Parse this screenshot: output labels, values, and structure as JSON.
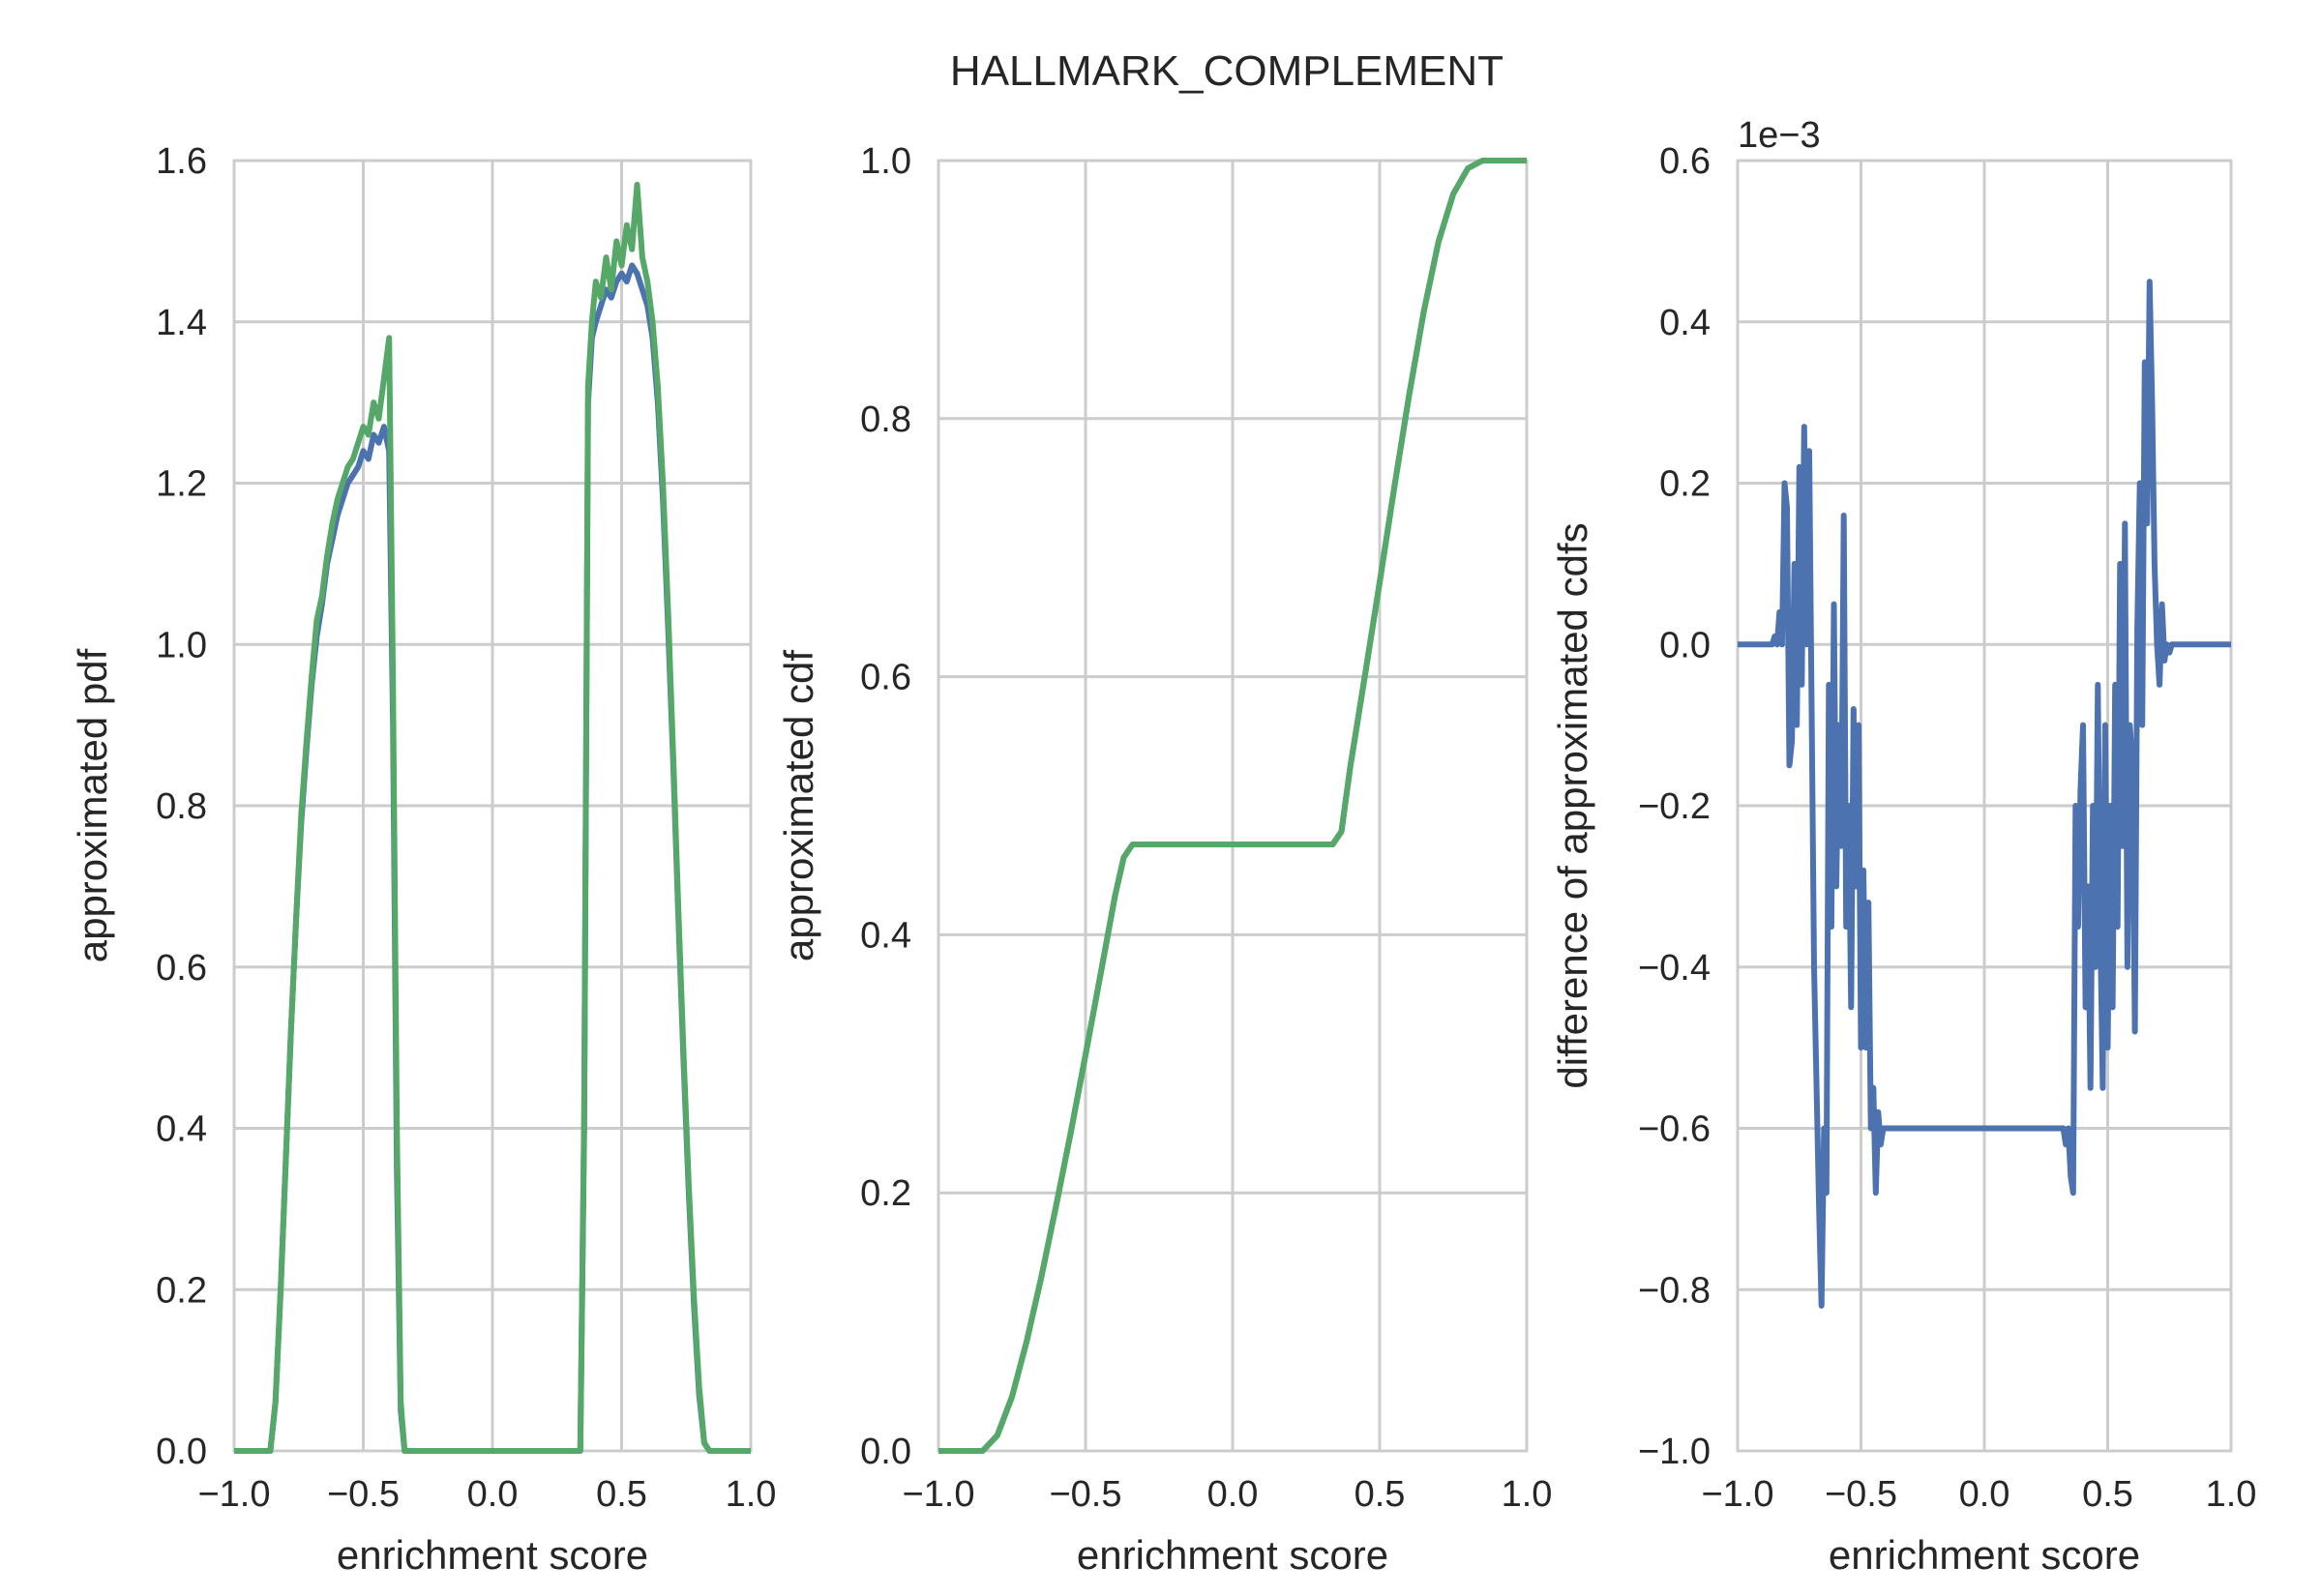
{
  "figure": {
    "title": "HALLMARK_COMPLEMENT"
  },
  "colors": {
    "series_blue": "#4C72B0",
    "series_green": "#55A868",
    "grid": "#cccccc",
    "text": "#262626"
  },
  "chart_data": [
    {
      "type": "line",
      "xlabel": "enrichment score",
      "ylabel": "approximated pdf",
      "xlim": [
        -1.0,
        1.0
      ],
      "ylim": [
        0.0,
        1.6
      ],
      "xticks": [
        "−1.0",
        "−0.5",
        "0.0",
        "0.5",
        "1.0"
      ],
      "yticks": [
        "0.0",
        "0.2",
        "0.4",
        "0.6",
        "0.8",
        "1.0",
        "1.2",
        "1.4",
        "1.6"
      ],
      "grid": true,
      "series": [
        {
          "color": "#4C72B0",
          "x": [
            -1.0,
            -0.86,
            -0.84,
            -0.82,
            -0.8,
            -0.78,
            -0.76,
            -0.74,
            -0.72,
            -0.7,
            -0.68,
            -0.66,
            -0.64,
            -0.62,
            -0.6,
            -0.58,
            -0.56,
            -0.54,
            -0.52,
            -0.5,
            -0.48,
            -0.46,
            -0.44,
            -0.42,
            -0.4,
            -0.385,
            -0.37,
            -0.355,
            -0.34,
            0.34,
            0.355,
            0.37,
            0.385,
            0.4,
            0.42,
            0.44,
            0.46,
            0.48,
            0.5,
            0.52,
            0.54,
            0.56,
            0.58,
            0.6,
            0.62,
            0.64,
            0.66,
            0.68,
            0.7,
            0.72,
            0.74,
            0.76,
            0.78,
            0.8,
            0.82,
            0.84,
            0.86,
            1.0
          ],
          "y": [
            0.0,
            0.0,
            0.06,
            0.2,
            0.36,
            0.52,
            0.66,
            0.78,
            0.87,
            0.95,
            1.01,
            1.05,
            1.1,
            1.13,
            1.16,
            1.18,
            1.2,
            1.21,
            1.22,
            1.24,
            1.23,
            1.26,
            1.25,
            1.27,
            1.24,
            0.9,
            0.35,
            0.05,
            0.0,
            0.0,
            0.4,
            1.3,
            1.38,
            1.4,
            1.42,
            1.44,
            1.43,
            1.45,
            1.46,
            1.45,
            1.47,
            1.46,
            1.44,
            1.42,
            1.38,
            1.3,
            1.18,
            1.02,
            0.85,
            0.66,
            0.48,
            0.32,
            0.18,
            0.07,
            0.01,
            0.0,
            0.0,
            0.0
          ]
        },
        {
          "color": "#55A868",
          "x": [
            -1.0,
            -0.86,
            -0.84,
            -0.82,
            -0.8,
            -0.78,
            -0.76,
            -0.74,
            -0.72,
            -0.7,
            -0.68,
            -0.66,
            -0.64,
            -0.62,
            -0.6,
            -0.58,
            -0.56,
            -0.54,
            -0.52,
            -0.5,
            -0.48,
            -0.46,
            -0.44,
            -0.42,
            -0.4,
            -0.385,
            -0.37,
            -0.355,
            -0.34,
            0.34,
            0.355,
            0.37,
            0.385,
            0.4,
            0.42,
            0.44,
            0.46,
            0.48,
            0.5,
            0.52,
            0.54,
            0.56,
            0.58,
            0.6,
            0.62,
            0.64,
            0.66,
            0.68,
            0.7,
            0.72,
            0.74,
            0.76,
            0.78,
            0.8,
            0.82,
            0.84,
            0.86,
            1.0
          ],
          "y": [
            0.0,
            0.0,
            0.06,
            0.2,
            0.36,
            0.52,
            0.66,
            0.79,
            0.88,
            0.96,
            1.03,
            1.06,
            1.11,
            1.15,
            1.18,
            1.2,
            1.22,
            1.23,
            1.25,
            1.27,
            1.26,
            1.3,
            1.28,
            1.33,
            1.38,
            0.95,
            0.4,
            0.06,
            0.0,
            0.0,
            0.42,
            1.32,
            1.4,
            1.45,
            1.43,
            1.48,
            1.44,
            1.5,
            1.47,
            1.52,
            1.49,
            1.57,
            1.48,
            1.45,
            1.4,
            1.32,
            1.2,
            1.04,
            0.86,
            0.67,
            0.49,
            0.33,
            0.19,
            0.08,
            0.01,
            0.0,
            0.0,
            0.0
          ]
        }
      ]
    },
    {
      "type": "line",
      "xlabel": "enrichment score",
      "ylabel": "approximated cdf",
      "xlim": [
        -1.0,
        1.0
      ],
      "ylim": [
        0.0,
        1.0
      ],
      "xticks": [
        "−1.0",
        "−0.5",
        "0.0",
        "0.5",
        "1.0"
      ],
      "yticks": [
        "0.0",
        "0.2",
        "0.4",
        "0.6",
        "0.8",
        "1.0"
      ],
      "grid": true,
      "series": [
        {
          "color": "#4C72B0",
          "x": [
            -1.0,
            -0.85,
            -0.8,
            -0.75,
            -0.7,
            -0.65,
            -0.6,
            -0.55,
            -0.5,
            -0.45,
            -0.4,
            -0.37,
            -0.34,
            0.34,
            0.37,
            0.4,
            0.45,
            0.5,
            0.55,
            0.6,
            0.65,
            0.7,
            0.75,
            0.8,
            0.85,
            1.0
          ],
          "y": [
            0.0,
            0.0,
            0.012,
            0.042,
            0.085,
            0.135,
            0.19,
            0.247,
            0.307,
            0.368,
            0.43,
            0.46,
            0.47,
            0.47,
            0.48,
            0.53,
            0.601,
            0.673,
            0.747,
            0.818,
            0.883,
            0.937,
            0.974,
            0.994,
            1.0,
            1.0
          ]
        },
        {
          "color": "#55A868",
          "x": [
            -1.0,
            -0.85,
            -0.8,
            -0.75,
            -0.7,
            -0.65,
            -0.6,
            -0.55,
            -0.5,
            -0.45,
            -0.4,
            -0.37,
            -0.34,
            0.34,
            0.37,
            0.4,
            0.45,
            0.5,
            0.55,
            0.6,
            0.65,
            0.7,
            0.75,
            0.8,
            0.85,
            1.0
          ],
          "y": [
            0.0,
            0.0,
            0.012,
            0.042,
            0.085,
            0.135,
            0.19,
            0.247,
            0.307,
            0.368,
            0.43,
            0.46,
            0.47,
            0.47,
            0.48,
            0.53,
            0.601,
            0.673,
            0.747,
            0.818,
            0.883,
            0.937,
            0.974,
            0.994,
            1.0,
            1.0
          ]
        }
      ]
    },
    {
      "type": "line",
      "xlabel": "enrichment score",
      "ylabel": "difference of approximated cdfs",
      "xlim": [
        -1.0,
        1.0
      ],
      "ylim": [
        -1.0,
        0.6
      ],
      "offset_label": "1e−3",
      "xticks": [
        "−1.0",
        "−0.5",
        "0.0",
        "0.5",
        "1.0"
      ],
      "yticks": [
        "−1.0",
        "−0.8",
        "−0.6",
        "−0.4",
        "−0.2",
        "0.0",
        "0.2",
        "0.4",
        "0.6"
      ],
      "grid": true,
      "series": [
        {
          "color": "#4C72B0",
          "x": [
            -1.0,
            -0.9,
            -0.88,
            -0.86,
            -0.85,
            -0.84,
            -0.83,
            -0.82,
            -0.81,
            -0.8,
            -0.79,
            -0.78,
            -0.77,
            -0.76,
            -0.75,
            -0.74,
            -0.73,
            -0.72,
            -0.71,
            -0.7,
            -0.69,
            -0.68,
            -0.67,
            -0.66,
            -0.65,
            -0.64,
            -0.63,
            -0.62,
            -0.61,
            -0.6,
            -0.59,
            -0.58,
            -0.57,
            -0.56,
            -0.55,
            -0.54,
            -0.53,
            -0.52,
            -0.51,
            -0.5,
            -0.49,
            -0.48,
            -0.47,
            -0.46,
            -0.45,
            -0.44,
            -0.43,
            -0.42,
            -0.41,
            -0.4,
            -0.39,
            -0.38,
            -0.37,
            -0.36,
            -0.35,
            -0.34,
            -0.32,
            0.32,
            0.33,
            0.34,
            0.35,
            0.36,
            0.37,
            0.38,
            0.39,
            0.4,
            0.41,
            0.42,
            0.43,
            0.44,
            0.45,
            0.46,
            0.47,
            0.48,
            0.49,
            0.5,
            0.51,
            0.52,
            0.53,
            0.54,
            0.55,
            0.56,
            0.57,
            0.58,
            0.59,
            0.6,
            0.61,
            0.62,
            0.63,
            0.64,
            0.65,
            0.66,
            0.67,
            0.68,
            0.69,
            0.7,
            0.71,
            0.72,
            0.73,
            0.74,
            0.75,
            0.76,
            0.77,
            0.78,
            0.8,
            0.82,
            0.85,
            1.0
          ],
          "y": [
            0.0,
            0.0,
            0.0,
            0.0,
            0.01,
            0.0,
            0.04,
            0.0,
            0.2,
            0.17,
            -0.15,
            -0.12,
            0.1,
            -0.1,
            0.22,
            -0.05,
            0.27,
            0.0,
            0.24,
            -0.08,
            -0.4,
            -0.55,
            -0.7,
            -0.82,
            -0.6,
            -0.68,
            -0.05,
            -0.35,
            0.05,
            -0.3,
            -0.1,
            -0.25,
            0.16,
            -0.35,
            -0.2,
            -0.45,
            -0.08,
            -0.3,
            -0.1,
            -0.5,
            -0.28,
            -0.5,
            -0.32,
            -0.6,
            -0.55,
            -0.68,
            -0.58,
            -0.62,
            -0.6,
            -0.6,
            -0.6,
            -0.6,
            -0.6,
            -0.6,
            -0.6,
            -0.6,
            -0.6,
            -0.6,
            -0.62,
            -0.6,
            -0.66,
            -0.68,
            -0.2,
            -0.35,
            -0.18,
            -0.1,
            -0.45,
            -0.3,
            -0.55,
            -0.2,
            -0.4,
            -0.05,
            -0.35,
            -0.55,
            -0.1,
            -0.5,
            -0.2,
            -0.45,
            -0.05,
            -0.35,
            0.1,
            -0.25,
            0.15,
            -0.4,
            -0.1,
            -0.15,
            -0.48,
            0.02,
            0.2,
            -0.1,
            0.35,
            0.15,
            0.45,
            0.3,
            0.1,
            0.0,
            -0.05,
            0.05,
            -0.02,
            0.0,
            -0.01,
            0.0,
            0.0,
            0.0,
            0.0,
            0.0,
            0.0,
            0.0
          ]
        }
      ]
    }
  ]
}
